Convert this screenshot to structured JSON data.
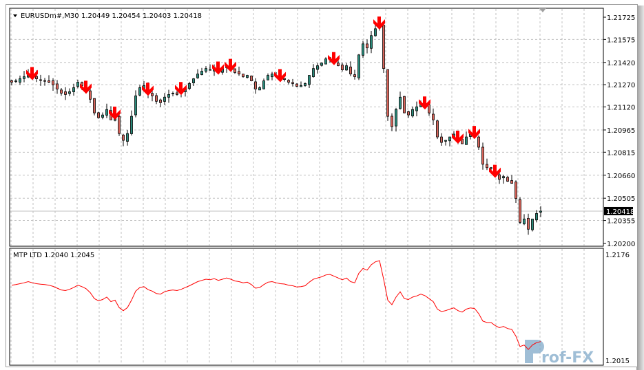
{
  "header": {
    "symbol_timeframe": "EURUSDm#,M30",
    "ohlc": "1.20449 1.20454 1.20403 1.20418",
    "menu_icon": "triangle-down-icon"
  },
  "indicator": {
    "label": "MTP LTD 1.2040 1.2045",
    "axis_top": "1.2176",
    "axis_bottom": "1.2015",
    "line_color": "#ff0000"
  },
  "price_axis": {
    "ticks": [
      "1.21725",
      "1.21575",
      "1.21420",
      "1.21270",
      "1.21120",
      "1.20965",
      "1.20815",
      "1.20660",
      "1.20505",
      "1.20355",
      "1.20200"
    ],
    "current_price": "1.20418"
  },
  "watermark": "Prof-FX",
  "colors": {
    "bull": "#2a8a7a",
    "bear": "#d8645a",
    "signal_arrow": "#ff0000",
    "grid": "#c0c0c0"
  },
  "chart_data": {
    "type": "candlestick",
    "symbol": "EURUSDm#",
    "timeframe": "M30",
    "ylim": [
      1.202,
      1.21725
    ],
    "grid": true,
    "closes": [
      1.21287,
      1.21296,
      1.2131,
      1.21324,
      1.21342,
      1.21324,
      1.2131,
      1.21301,
      1.21296,
      1.21287,
      1.21269,
      1.21241,
      1.21213,
      1.21204,
      1.21223,
      1.2125,
      1.21287,
      1.21264,
      1.21232,
      1.21172,
      1.2108,
      1.21047,
      1.21066,
      1.21103,
      1.21033,
      1.21057,
      1.20941,
      1.20895,
      1.20941,
      1.21057,
      1.21195,
      1.2125,
      1.21264,
      1.21218,
      1.21195,
      1.21158,
      1.21149,
      1.21186,
      1.21204,
      1.21213,
      1.21204,
      1.21223,
      1.2125,
      1.21278,
      1.2131,
      1.21342,
      1.21361,
      1.21379,
      1.2137,
      1.21388,
      1.21361,
      1.21379,
      1.21398,
      1.21379,
      1.21352,
      1.21342,
      1.21324,
      1.21333,
      1.21296,
      1.21241,
      1.2125,
      1.21296,
      1.21333,
      1.21342,
      1.21324,
      1.2131,
      1.21305,
      1.21287,
      1.21278,
      1.21259,
      1.21264,
      1.21278,
      1.21333,
      1.21379,
      1.21398,
      1.21416,
      1.21444,
      1.21453,
      1.21425,
      1.21398,
      1.2137,
      1.21398,
      1.21342,
      1.21324,
      1.21471,
      1.21545,
      1.21518,
      1.21601,
      1.21647,
      1.21665,
      1.21379,
      1.21057,
      1.20987,
      1.21103,
      1.21186,
      1.2108,
      1.21066,
      1.21103,
      1.21121,
      1.21149,
      1.21126,
      1.2108,
      1.21033,
      1.20918,
      1.20881,
      1.20895,
      1.20918,
      1.20937,
      1.20895,
      1.20872,
      1.20918,
      1.20937,
      1.20927,
      1.20849,
      1.20734,
      1.20711,
      1.20711,
      1.20665,
      1.20632,
      1.20651,
      1.20619,
      1.20605,
      1.20503,
      1.20342,
      1.20365,
      1.20296,
      1.20365,
      1.20402,
      1.20418
    ],
    "sell_signal_bars": [
      5,
      18,
      25,
      33,
      41,
      50,
      53,
      65,
      78,
      89,
      100,
      108,
      112,
      117
    ],
    "indicator_ylim": [
      1.2015,
      1.2176
    ]
  }
}
